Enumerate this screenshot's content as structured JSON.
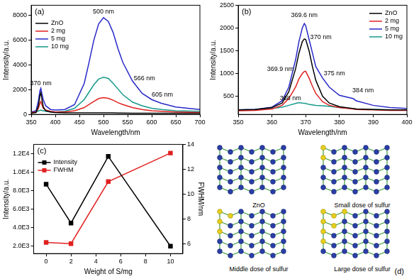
{
  "chart_data": [
    {
      "type": "line",
      "title": "(a)",
      "x_label": "Wavelength/nm",
      "y_label": "Intensity/a.u.",
      "x": [
        350,
        360,
        365,
        368,
        370,
        372,
        375,
        380,
        390,
        400,
        420,
        440,
        460,
        470,
        480,
        490,
        500,
        510,
        520,
        530,
        540,
        560,
        580,
        600,
        620,
        650,
        700
      ],
      "series": [
        {
          "name": "ZnO",
          "color": "#000000",
          "values": [
            100,
            150,
            700,
            1500,
            1750,
            1300,
            600,
            300,
            200,
            150,
            130,
            120,
            120,
            120,
            120,
            120,
            120,
            120,
            120,
            110,
            110,
            100,
            100,
            100,
            100,
            100,
            100
          ]
        },
        {
          "name": "2 mg",
          "color": "#e02020",
          "values": [
            150,
            200,
            500,
            900,
            1050,
            800,
            500,
            350,
            250,
            200,
            200,
            300,
            550,
            800,
            1050,
            1280,
            1350,
            1300,
            1150,
            950,
            800,
            550,
            400,
            300,
            250,
            200,
            150
          ]
        },
        {
          "name": "5 mg",
          "color": "#2828c8",
          "values": [
            200,
            300,
            1100,
            1900,
            2100,
            1700,
            1200,
            700,
            400,
            350,
            400,
            800,
            2500,
            4200,
            6000,
            7300,
            7800,
            7500,
            6600,
            5300,
            4200,
            2700,
            1700,
            1200,
            900,
            600,
            400
          ]
        },
        {
          "name": "10 mg",
          "color": "#16998a",
          "values": [
            150,
            200,
            280,
            320,
            350,
            330,
            300,
            250,
            200,
            200,
            250,
            500,
            1200,
            1800,
            2400,
            2850,
            3000,
            2900,
            2500,
            2050,
            1600,
            1000,
            700,
            500,
            400,
            300,
            250
          ]
        }
      ],
      "xlim": [
        350,
        700
      ],
      "xticks": [
        350,
        400,
        450,
        500,
        550,
        600,
        650,
        700
      ],
      "ylim": [
        0,
        8800
      ],
      "yticks": [
        0,
        2000,
        4000,
        6000,
        8000
      ],
      "grid": false,
      "legend": "upper left",
      "annotations": [
        {
          "text": "370 nm",
          "x": 370,
          "y": 2500
        },
        {
          "text": "500 nm",
          "x": 500,
          "y": 8250
        },
        {
          "text": "566 nm",
          "x": 585,
          "y": 2900
        },
        {
          "text": "605 nm",
          "x": 622,
          "y": 1600
        }
      ]
    },
    {
      "type": "line",
      "title": "(b)",
      "x_label": "Wavelength/nm",
      "y_label": "Intensity/a.u.",
      "x": [
        350,
        355,
        360,
        363,
        365,
        367,
        368,
        369,
        369.6,
        370,
        371,
        372,
        373,
        375,
        377,
        380,
        384,
        385,
        390,
        395,
        400
      ],
      "series": [
        {
          "name": "ZnO",
          "color": "#000000",
          "values": [
            200,
            210,
            250,
            350,
            600,
            1100,
            1450,
            1700,
            1760,
            1750,
            1500,
            1150,
            850,
            500,
            350,
            270,
            230,
            220,
            210,
            200,
            200
          ]
        },
        {
          "name": "2 mg",
          "color": "#e02020",
          "values": [
            180,
            190,
            220,
            300,
            450,
            700,
            880,
            1000,
            1045,
            1050,
            900,
            720,
            560,
            380,
            300,
            250,
            220,
            210,
            200,
            190,
            190
          ]
        },
        {
          "name": "5 mg",
          "color": "#2828c8",
          "values": [
            200,
            210,
            260,
            400,
            700,
            1300,
            1700,
            2000,
            2100,
            2050,
            1750,
            1450,
            1150,
            900,
            700,
            520,
            450,
            400,
            300,
            250,
            230
          ]
        },
        {
          "name": "10 mg",
          "color": "#16998a",
          "values": [
            200,
            210,
            230,
            260,
            300,
            340,
            360,
            350,
            345,
            340,
            320,
            310,
            300,
            290,
            280,
            250,
            230,
            220,
            210,
            200,
            200
          ]
        }
      ],
      "xlim": [
        350,
        400
      ],
      "xticks": [
        350,
        360,
        370,
        380,
        390,
        400
      ],
      "ylim": [
        100,
        2500
      ],
      "yticks": [
        500,
        1000,
        1500,
        2000,
        2500
      ],
      "grid": false,
      "legend": "upper right",
      "annotations": [
        {
          "text": "369.6 nm",
          "x": 369.6,
          "y": 2280
        },
        {
          "text": "370 nm",
          "x": 374.5,
          "y": 1800
        },
        {
          "text": "369.9 nm",
          "x": 362.5,
          "y": 1100
        },
        {
          "text": "375 nm",
          "x": 378.5,
          "y": 1000
        },
        {
          "text": "384 nm",
          "x": 387,
          "y": 620
        },
        {
          "text": "368 nm",
          "x": 365.5,
          "y": 460
        }
      ]
    },
    {
      "type": "line",
      "title": "(c)",
      "x_label": "Weight of S/mg",
      "y_label": "Intensity/a.u.",
      "y2_label": "FWHM/nm",
      "x": [
        0,
        2,
        5,
        10
      ],
      "series": [
        {
          "name": "Intensity",
          "color": "#000000",
          "values": [
            8700,
            4500,
            11700,
            2000
          ]
        },
        {
          "name": "FWHM",
          "color": "#e02020",
          "values": [
            6.1,
            6.0,
            11.0,
            13.3
          ],
          "axis": "y2"
        }
      ],
      "xlim": [
        -1,
        11
      ],
      "xticks": [
        0,
        2,
        4,
        6,
        8,
        10
      ],
      "ylim": [
        1200,
        13000
      ],
      "yticks": [
        {
          "value": 2000,
          "label": "2.0E3"
        },
        {
          "value": 4000,
          "label": "4.0E3"
        },
        {
          "value": 6000,
          "label": "6.0E3"
        },
        {
          "value": 8000,
          "label": "8.0E3"
        },
        {
          "value": 10000,
          "label": "1.0E4"
        },
        {
          "value": 12000,
          "label": "1.2E4"
        }
      ],
      "y2lim": [
        5.2,
        14
      ],
      "y2ticks": [
        6,
        8,
        10,
        12,
        14
      ],
      "grid": false,
      "legend": "upper left",
      "marker": "square"
    }
  ],
  "diagram": {
    "title": "(d)",
    "captions": [
      "ZnO",
      "Small dose of sulfur",
      "Middle dose of sulfur",
      "Large dose of sulfur"
    ]
  }
}
